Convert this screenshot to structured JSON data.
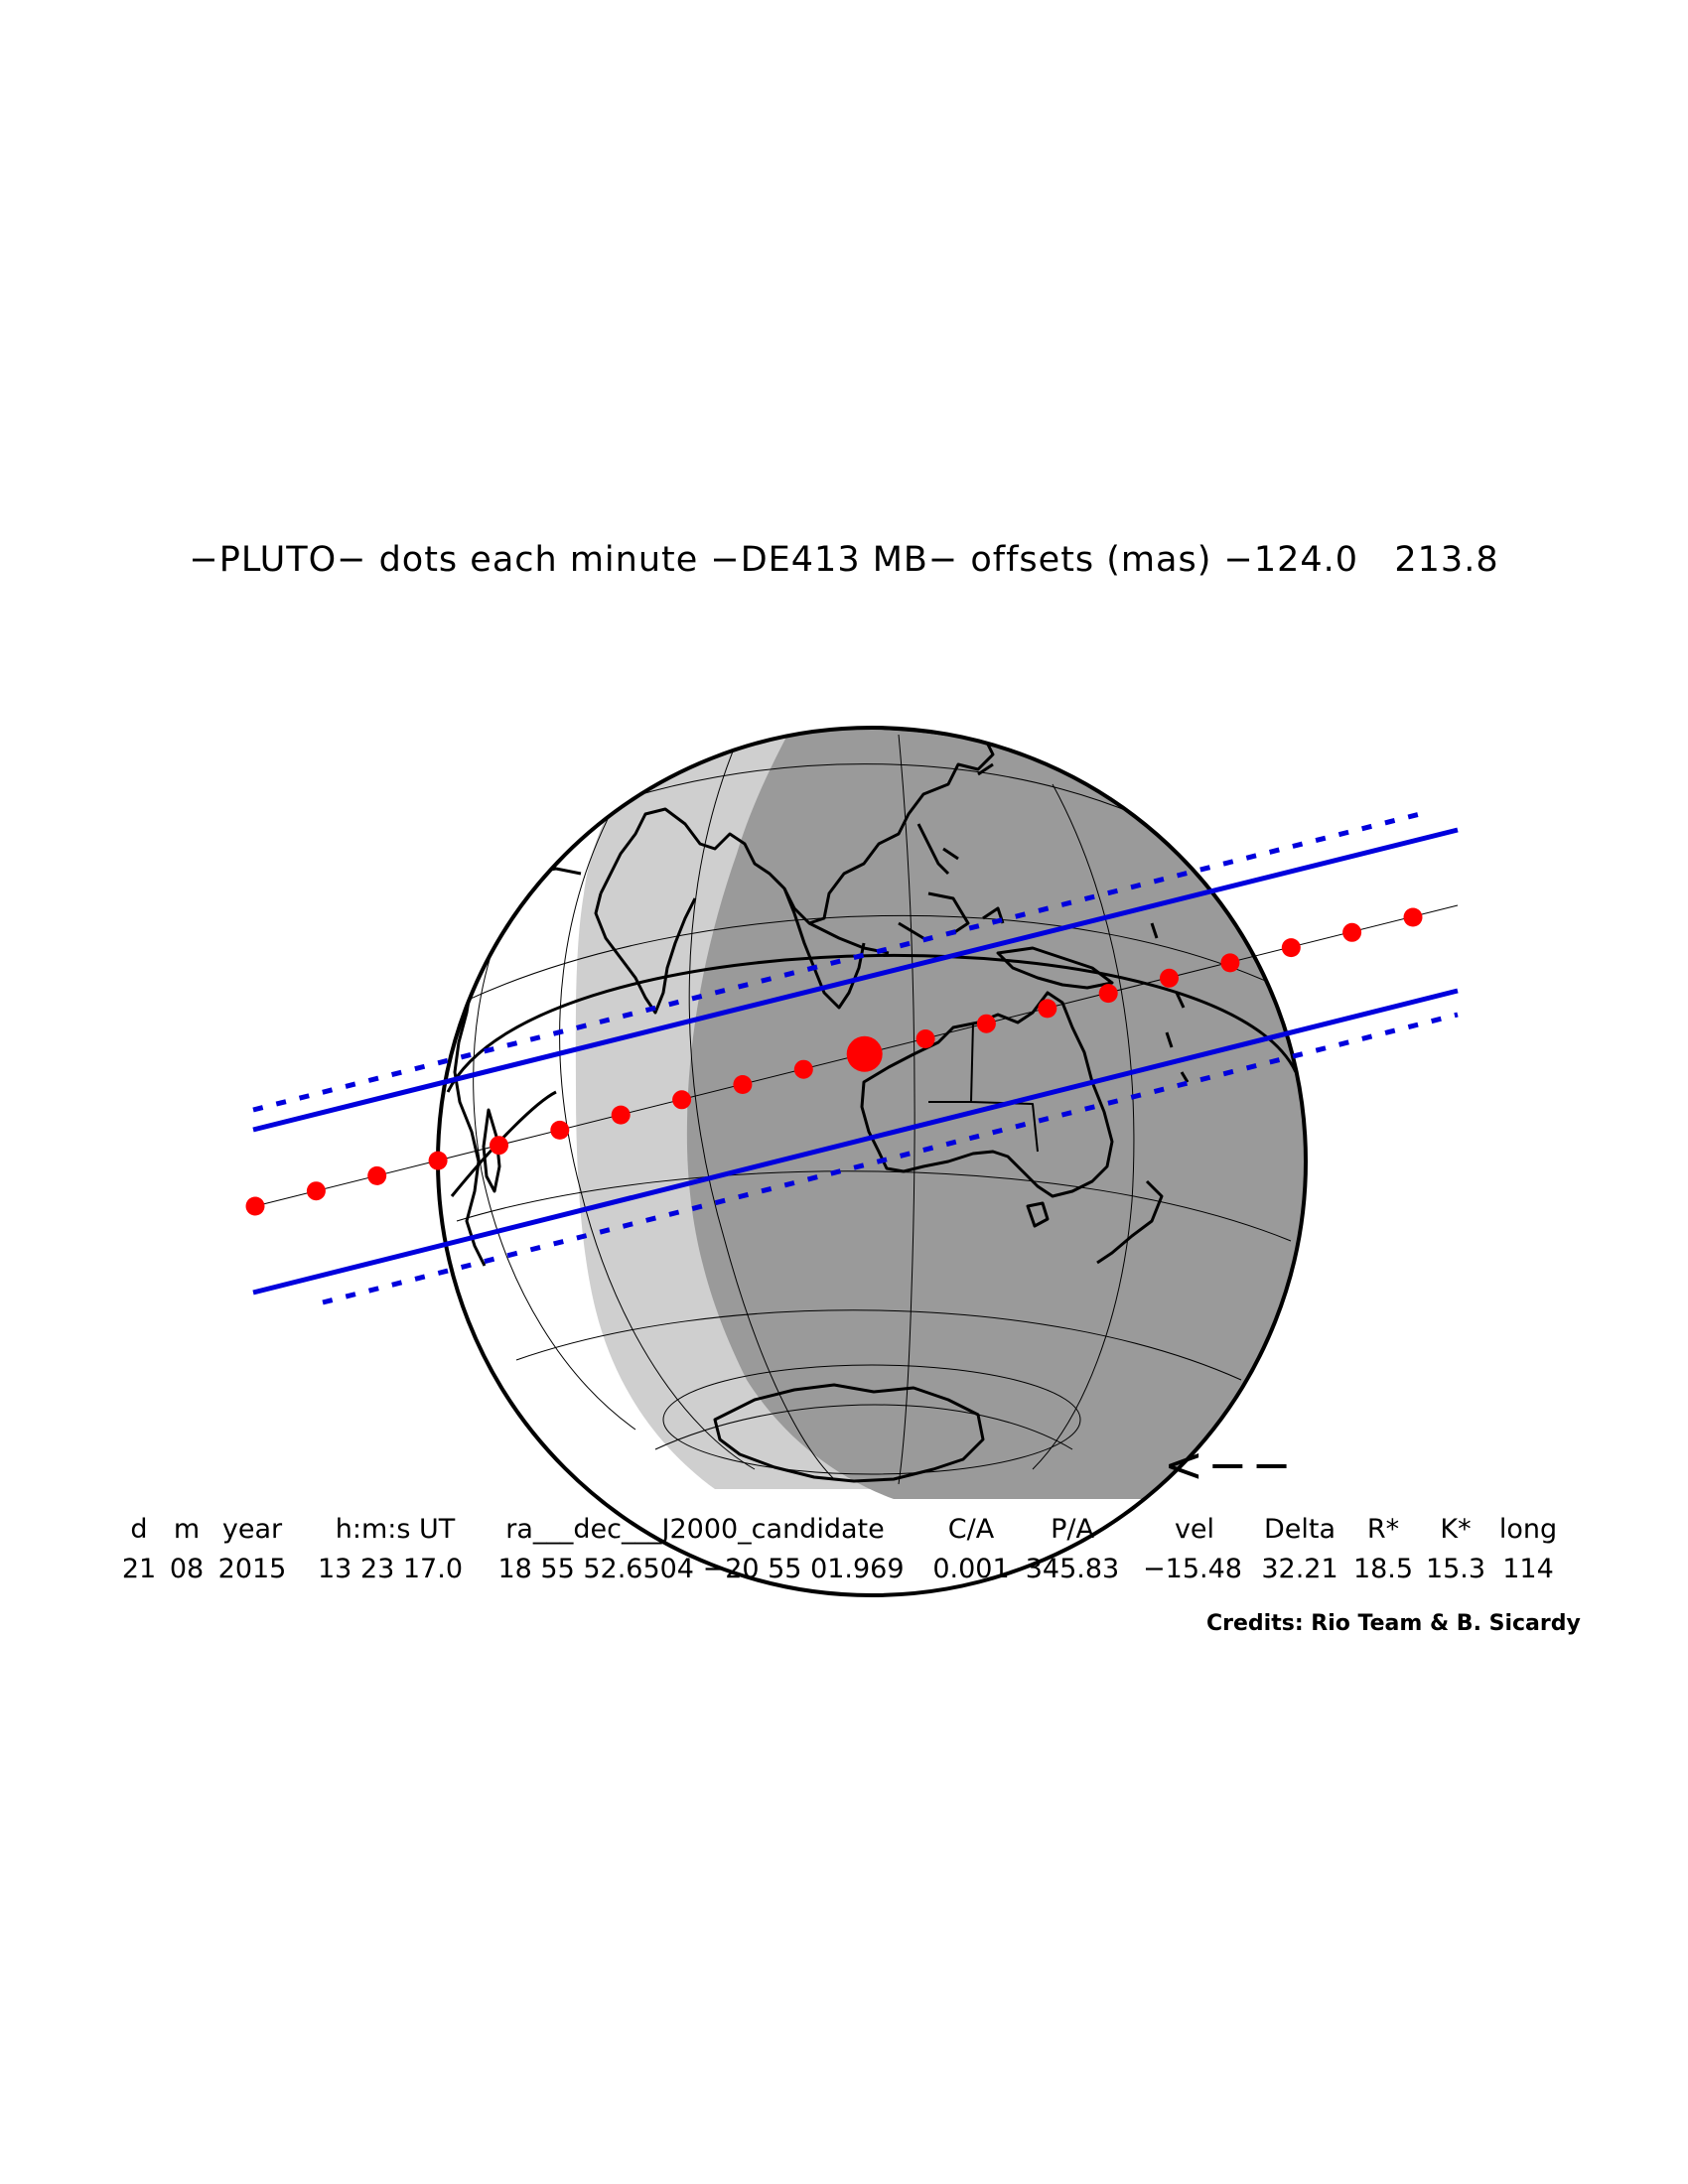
{
  "title": "−PLUTO− dots each minute −DE413 MB− offsets (mas) −124.0   213.8",
  "direction_arrow": "<−−",
  "table": {
    "headers": [
      "d",
      "m",
      "year",
      "h:m:s UT",
      "ra___dec___J2000_candidate",
      "C/A",
      "P/A",
      "vel",
      "Delta",
      "R*",
      "K*",
      "long"
    ],
    "values": [
      "21",
      "08",
      "2015",
      "13 23 17.0",
      "18 55 52.6504 −20 55 01.969",
      "0.001",
      "345.83",
      "−15.48",
      "32.21",
      "18.5",
      "15.3",
      "114"
    ]
  },
  "credits": "Credits: Rio Team & B. Sicardy",
  "colors": {
    "night": "#9a9a9a",
    "twilight": "#cfcfcf",
    "day": "#ffffff",
    "limits": "#0000dd",
    "dots": "#ff0000",
    "coast": "#000000"
  }
}
